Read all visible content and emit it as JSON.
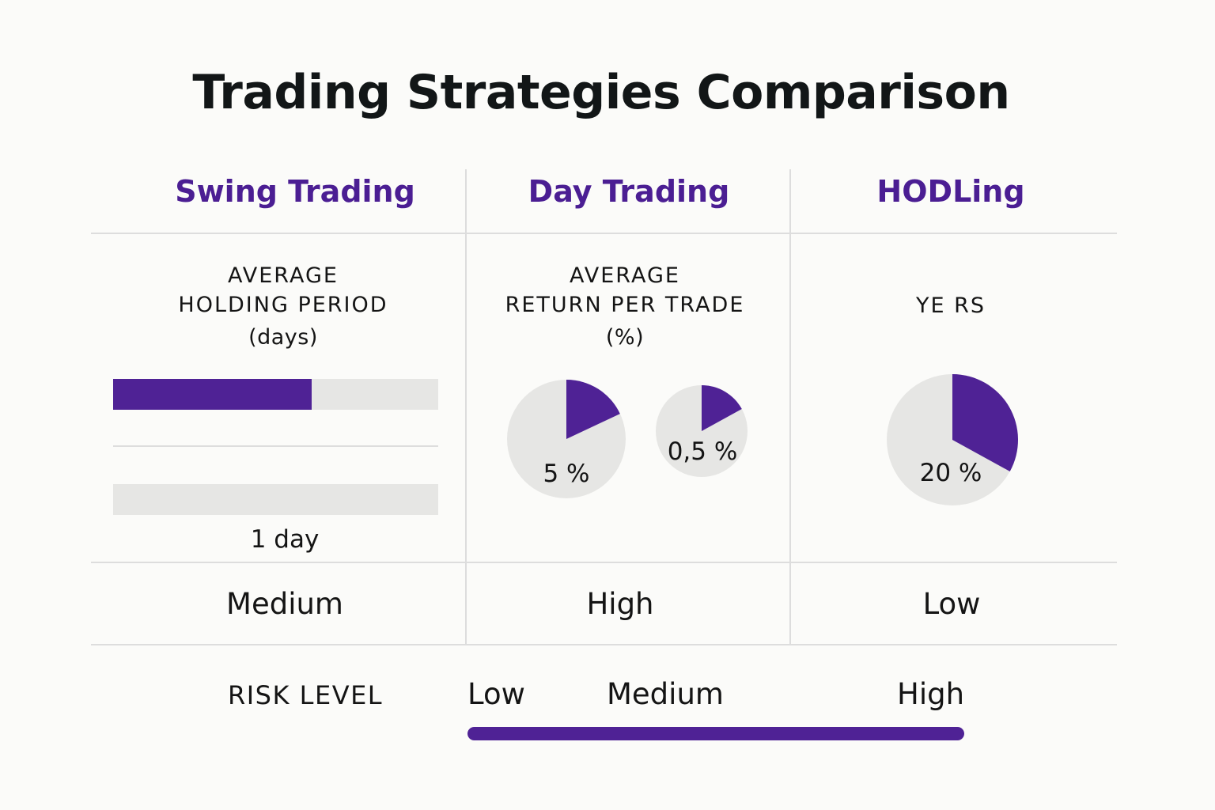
{
  "title": "Trading Strategies Comparison",
  "columns": [
    {
      "name": "Swing Trading",
      "risk": "Medium"
    },
    {
      "name": "Day Trading",
      "risk": "High"
    },
    {
      "name": "HODLing",
      "risk": "Low"
    }
  ],
  "metrics": {
    "swing": {
      "line1": "AVERAGE",
      "line2": "HOLDING PERIOD",
      "unit": "(days)",
      "bar_label": "1 day"
    },
    "day": {
      "line1": "AVERAGE",
      "line2": "RETURN PER TRADE",
      "unit": "(%)"
    },
    "hodl": {
      "label": "YE RS"
    }
  },
  "risk_scale": {
    "title": "RISK LEVEL",
    "labels": [
      "Low",
      "Medium",
      "High"
    ]
  },
  "colors": {
    "accent": "#4f2295",
    "track": "#e6e6e4"
  },
  "chart_data": [
    {
      "type": "bar",
      "orientation": "horizontal",
      "title": "AVERAGE HOLDING PERIOD (days)",
      "bars": [
        {
          "fill_fraction": 0.61
        },
        {
          "fill_fraction": 0.0
        }
      ],
      "annotation": "1 day"
    },
    {
      "type": "pie",
      "title": "AVERAGE RETURN PER TRADE (%)",
      "pies": [
        {
          "label": "5 %",
          "fraction": 0.18
        },
        {
          "label": "0,5 %",
          "fraction": 0.17
        }
      ]
    },
    {
      "type": "pie",
      "title": "YE RS",
      "pies": [
        {
          "label": "20 %",
          "fraction": 0.33
        }
      ]
    }
  ]
}
